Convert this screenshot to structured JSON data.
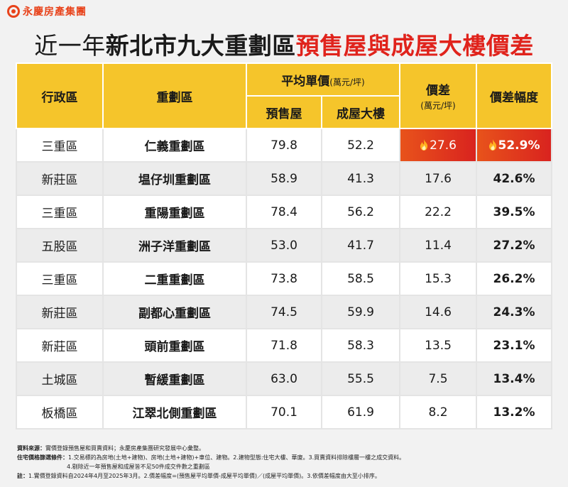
{
  "brand": {
    "name": "永慶房產集團"
  },
  "title": {
    "part1": "近一年",
    "part2": "新北市九大重劃區",
    "part3": "預售屋與成屋大樓價差"
  },
  "table": {
    "headers": {
      "district": "行政區",
      "zone": "重劃區",
      "avg_price": "平均單價",
      "avg_price_unit": "(萬元/坪)",
      "presale": "預售屋",
      "existing": "成屋大樓",
      "diff": "價差",
      "diff_unit": "(萬元/坪)",
      "diff_pct": "價差幅度"
    },
    "rows": [
      {
        "district": "三重區",
        "zone": "仁義重劃區",
        "presale": "79.8",
        "existing": "52.2",
        "diff": "27.6",
        "pct": "52.9%"
      },
      {
        "district": "新莊區",
        "zone": "塭仔圳重劃區",
        "presale": "58.9",
        "existing": "41.3",
        "diff": "17.6",
        "pct": "42.6%"
      },
      {
        "district": "三重區",
        "zone": "重陽重劃區",
        "presale": "78.4",
        "existing": "56.2",
        "diff": "22.2",
        "pct": "39.5%"
      },
      {
        "district": "五股區",
        "zone": "洲子洋重劃區",
        "presale": "53.0",
        "existing": "41.7",
        "diff": "11.4",
        "pct": "27.2%"
      },
      {
        "district": "三重區",
        "zone": "二重重劃區",
        "presale": "73.8",
        "existing": "58.5",
        "diff": "15.3",
        "pct": "26.2%"
      },
      {
        "district": "新莊區",
        "zone": "副都心重劃區",
        "presale": "74.5",
        "existing": "59.9",
        "diff": "14.6",
        "pct": "24.3%"
      },
      {
        "district": "新莊區",
        "zone": "頭前重劃區",
        "presale": "71.8",
        "existing": "58.3",
        "diff": "13.5",
        "pct": "23.1%"
      },
      {
        "district": "土城區",
        "zone": "暫緩重劃區",
        "presale": "63.0",
        "existing": "55.5",
        "diff": "7.5",
        "pct": "13.4%"
      },
      {
        "district": "板橋區",
        "zone": "江翠北側重劃區",
        "presale": "70.1",
        "existing": "61.9",
        "diff": "8.2",
        "pct": "13.2%"
      }
    ],
    "highlight_row_index": 0,
    "highlight_icon": "flame-icon",
    "colors": {
      "header": "#f5c52b",
      "highlight": "#e0231c",
      "title_accent": "#e0231c",
      "brand": "#e8431b"
    }
  },
  "notes": {
    "source_label": "資料來源：",
    "source_text": "實價登錄預售屋和買賣資料；永慶房產集團研究發展中心彙整。",
    "criteria_label": "住宅價格篩選條件：",
    "criteria_text": "1.交易標的為房地(土地+建物)、房地(土地+建物)+車位、建物。2.建物型態:住宅大樓、華廈。3.買賣資料排除樓層一樓之成交資料。",
    "criteria_text2": "4.剔除近一年預售屋和成屋皆不足50件成交件數之重劃區",
    "remark_label": "註：",
    "remark_text": "1.實價登錄資料自2024年4月至2025年3月。2.價差幅度=(預售屋平均單價-成屋平均單價)／(成屋平均單價)。3.依價差幅度由大至小排序。"
  }
}
